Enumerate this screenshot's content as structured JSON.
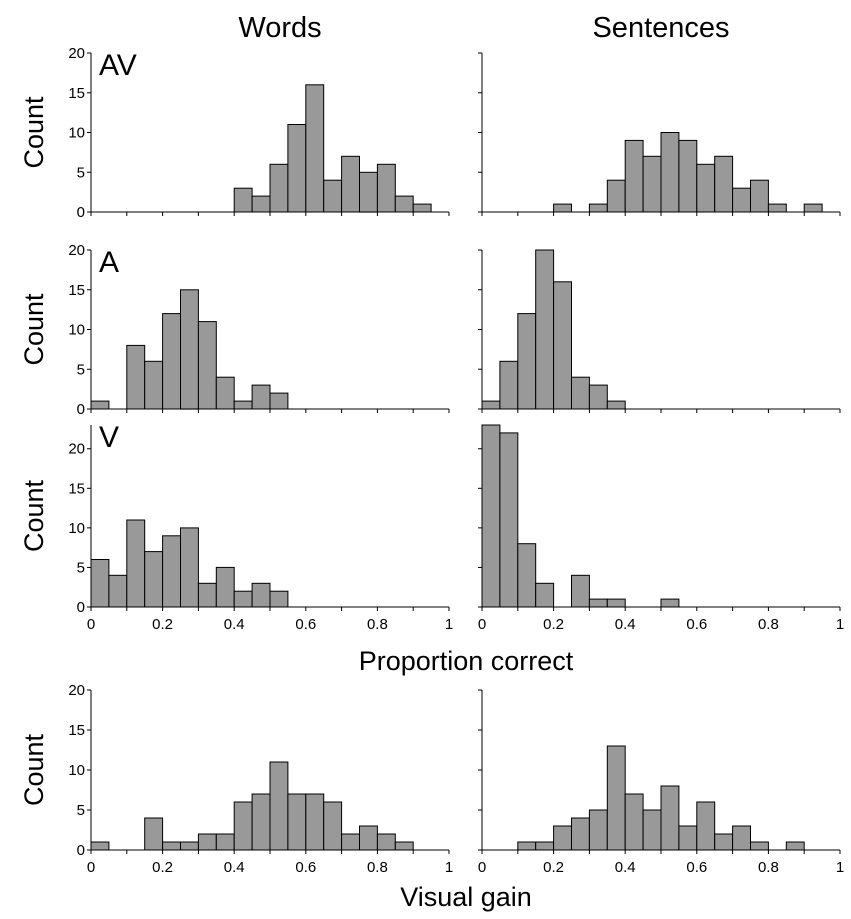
{
  "columns": [
    "Words",
    "Sentences"
  ],
  "x_label_proportion": "Proportion correct",
  "x_label_gain": "Visual gain",
  "y_label": "Count",
  "chart_data": [
    {
      "type": "bar",
      "row": "AV",
      "column": "Words",
      "panel_label": "AV",
      "ylabel": "Count",
      "xlabel": "",
      "xlim": [
        0,
        1
      ],
      "ylim": [
        0,
        20
      ],
      "bin_width": 0.05,
      "bins_start": [
        0.4,
        0.45,
        0.5,
        0.55,
        0.6,
        0.65,
        0.7,
        0.75,
        0.8,
        0.85,
        0.9
      ],
      "values": [
        3,
        2,
        6,
        11,
        16,
        4,
        7,
        5,
        6,
        2,
        1
      ],
      "y_ticks": [
        "0",
        "5",
        "10",
        "15",
        "20"
      ],
      "x_ticks": []
    },
    {
      "type": "bar",
      "row": "AV",
      "column": "Sentences",
      "panel_label": "",
      "ylabel": "",
      "xlabel": "",
      "xlim": [
        0,
        1
      ],
      "ylim": [
        0,
        20
      ],
      "bin_width": 0.05,
      "bins_start": [
        0.2,
        0.25,
        0.3,
        0.35,
        0.4,
        0.45,
        0.5,
        0.55,
        0.6,
        0.65,
        0.7,
        0.75,
        0.8,
        0.85,
        0.9
      ],
      "values": [
        1,
        0,
        1,
        4,
        9,
        7,
        10,
        9,
        6,
        7,
        3,
        4,
        1,
        0,
        1
      ],
      "y_ticks": [],
      "x_ticks": []
    },
    {
      "type": "bar",
      "row": "A",
      "column": "Words",
      "panel_label": "A",
      "ylabel": "Count",
      "xlabel": "",
      "xlim": [
        0,
        1
      ],
      "ylim": [
        0,
        20
      ],
      "bin_width": 0.05,
      "bins_start": [
        0,
        0.05,
        0.1,
        0.15,
        0.2,
        0.25,
        0.3,
        0.35,
        0.4,
        0.45,
        0.5
      ],
      "values": [
        1,
        0,
        8,
        6,
        12,
        15,
        11,
        4,
        1,
        3,
        2
      ],
      "y_ticks": [
        "0",
        "5",
        "10",
        "15",
        "20"
      ],
      "x_ticks": []
    },
    {
      "type": "bar",
      "row": "A",
      "column": "Sentences",
      "panel_label": "",
      "ylabel": "",
      "xlabel": "",
      "xlim": [
        0,
        1
      ],
      "ylim": [
        0,
        20
      ],
      "bin_width": 0.05,
      "bins_start": [
        0,
        0.05,
        0.1,
        0.15,
        0.2,
        0.25,
        0.3,
        0.35
      ],
      "values": [
        1,
        6,
        12,
        20,
        16,
        4,
        3,
        1
      ],
      "y_ticks": [],
      "x_ticks": []
    },
    {
      "type": "bar",
      "row": "V",
      "column": "Words",
      "panel_label": "V",
      "ylabel": "Count",
      "xlabel": "",
      "xlim": [
        0,
        1
      ],
      "ylim": [
        0,
        23
      ],
      "bin_width": 0.05,
      "bins_start": [
        0,
        0.05,
        0.1,
        0.15,
        0.2,
        0.25,
        0.3,
        0.35,
        0.4,
        0.45,
        0.5
      ],
      "values": [
        6,
        4,
        11,
        7,
        9,
        10,
        3,
        5,
        2,
        3,
        2
      ],
      "y_ticks": [
        "0",
        "5",
        "10",
        "15",
        "20"
      ],
      "x_ticks": [
        "0",
        "0.2",
        "0.4",
        "0.6",
        "0.8",
        "1"
      ]
    },
    {
      "type": "bar",
      "row": "V",
      "column": "Sentences",
      "panel_label": "",
      "ylabel": "",
      "xlabel": "",
      "xlim": [
        0,
        1
      ],
      "ylim": [
        0,
        23
      ],
      "bin_width": 0.05,
      "bins_start": [
        0,
        0.05,
        0.1,
        0.15,
        0.2,
        0.25,
        0.3,
        0.35,
        0.4,
        0.45,
        0.5
      ],
      "values": [
        23,
        22,
        8,
        3,
        0,
        4,
        1,
        1,
        0,
        0,
        1
      ],
      "y_ticks": [],
      "x_ticks": [
        "0",
        "0.2",
        "0.4",
        "0.6",
        "0.8",
        "1"
      ]
    },
    {
      "type": "bar",
      "row": "Gain",
      "column": "Words",
      "panel_label": "",
      "ylabel": "Count",
      "xlabel": "",
      "xlim": [
        0,
        1
      ],
      "ylim": [
        0,
        20
      ],
      "bin_width": 0.05,
      "bins_start": [
        0,
        0.05,
        0.1,
        0.15,
        0.2,
        0.25,
        0.3,
        0.35,
        0.4,
        0.45,
        0.5,
        0.55,
        0.6,
        0.65,
        0.7,
        0.75,
        0.8,
        0.85
      ],
      "values": [
        1,
        0,
        0,
        4,
        1,
        1,
        2,
        2,
        6,
        7,
        11,
        7,
        7,
        6,
        2,
        3,
        2,
        1
      ],
      "y_ticks": [
        "0",
        "5",
        "10",
        "15",
        "20"
      ],
      "x_ticks": [
        "0",
        "0.2",
        "0.4",
        "0.6",
        "0.8",
        "1"
      ]
    },
    {
      "type": "bar",
      "row": "Gain",
      "column": "Sentences",
      "panel_label": "",
      "ylabel": "",
      "xlabel": "",
      "xlim": [
        0,
        1
      ],
      "ylim": [
        0,
        20
      ],
      "bin_width": 0.05,
      "bins_start": [
        0.1,
        0.15,
        0.2,
        0.25,
        0.3,
        0.35,
        0.4,
        0.45,
        0.5,
        0.55,
        0.6,
        0.65,
        0.7,
        0.75,
        0.8,
        0.85
      ],
      "values": [
        1,
        1,
        3,
        4,
        5,
        13,
        7,
        5,
        8,
        3,
        6,
        2,
        3,
        1,
        0,
        1
      ],
      "y_ticks": [],
      "x_ticks": [
        "0",
        "0.2",
        "0.4",
        "0.6",
        "0.8",
        "1"
      ]
    }
  ]
}
